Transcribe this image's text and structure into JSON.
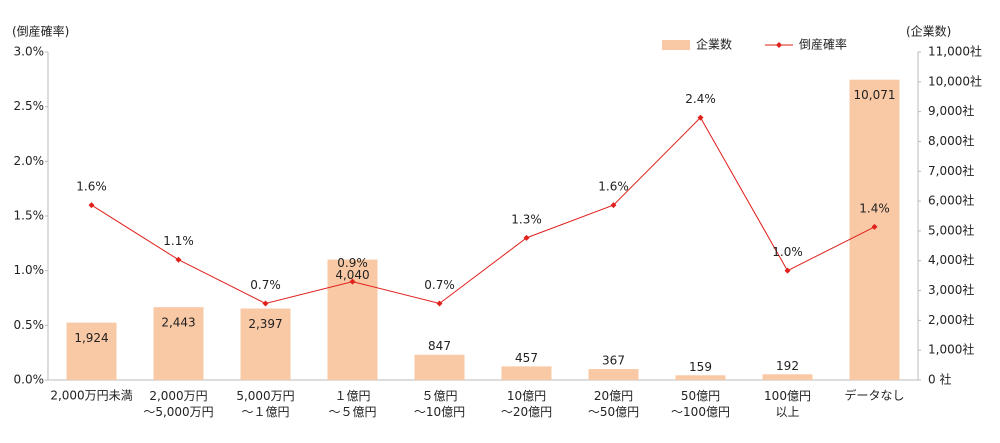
{
  "chart_data": {
    "type": "bar-line",
    "y_label": "(倒産確率)",
    "y2_label": "(企業数)",
    "categories": [
      "2,000万円未満",
      "2,000万円\n～5,000万円",
      "5,000万円\n～１億円",
      "１億円\n～５億円",
      "５億円\n～10億円",
      "10億円\n～20億円",
      "20億円\n～50億円",
      "50億円\n～100億円",
      "100億円\n以上",
      "データなし"
    ],
    "series": [
      {
        "name": "企業数",
        "type": "bar",
        "axis": "y2",
        "color": "#f9c9a6",
        "values": [
          1924,
          2443,
          2397,
          4040,
          847,
          457,
          367,
          159,
          192,
          10071
        ],
        "value_labels": [
          "1,924",
          "2,443",
          "2,397",
          "4,040",
          "847",
          "457",
          "367",
          "159",
          "192",
          "10,071"
        ]
      },
      {
        "name": "倒産確率",
        "type": "line",
        "axis": "y",
        "color": "#e0201b",
        "values": [
          1.6,
          1.1,
          0.7,
          0.9,
          0.7,
          1.3,
          1.6,
          2.4,
          1.0,
          1.4
        ],
        "value_labels": [
          "1.6%",
          "1.1%",
          "0.7%",
          "0.9%",
          "0.7%",
          "1.3%",
          "1.6%",
          "2.4%",
          "1.0%",
          "1.4%"
        ]
      }
    ],
    "ylim": [
      0,
      3.0
    ],
    "yticks": [
      {
        "value": 0,
        "label": "0.0%"
      },
      {
        "value": 0.5,
        "label": "0.5%"
      },
      {
        "value": 1.0,
        "label": "1.0%"
      },
      {
        "value": 1.5,
        "label": "1.5%"
      },
      {
        "value": 2.0,
        "label": "2.0%"
      },
      {
        "value": 2.5,
        "label": "2.5%"
      },
      {
        "value": 3.0,
        "label": "3.0%"
      }
    ],
    "y2lim": [
      0,
      11000
    ],
    "y2ticks": [
      {
        "value": 0,
        "label": "0 社"
      },
      {
        "value": 1000,
        "label": "1,000社"
      },
      {
        "value": 2000,
        "label": "2,000社"
      },
      {
        "value": 3000,
        "label": "3,000社"
      },
      {
        "value": 4000,
        "label": "4,000社"
      },
      {
        "value": 5000,
        "label": "5,000社"
      },
      {
        "value": 6000,
        "label": "6,000社"
      },
      {
        "value": 7000,
        "label": "7,000社"
      },
      {
        "value": 8000,
        "label": "8,000社"
      },
      {
        "value": 9000,
        "label": "9,000社"
      },
      {
        "value": 10000,
        "label": "10,000社"
      },
      {
        "value": 11000,
        "label": "11,000社"
      }
    ],
    "legend": "top-right"
  }
}
